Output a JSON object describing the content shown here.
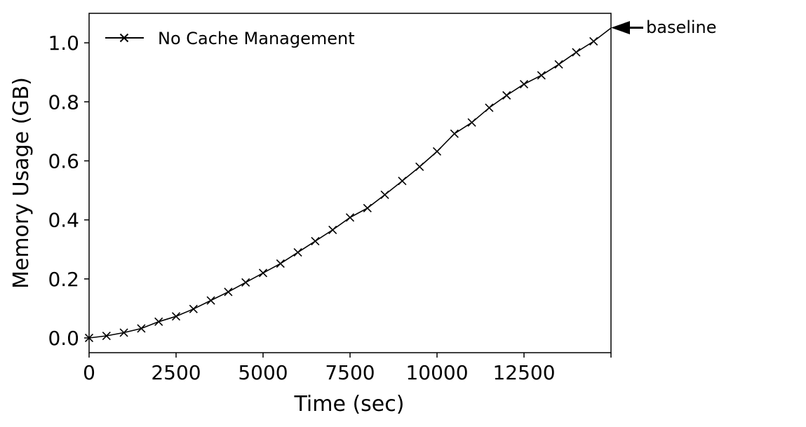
{
  "chart_data": {
    "type": "line",
    "title": "",
    "xlabel": "Time (sec)",
    "ylabel": "Memory Usage (GB)",
    "xlim": [
      0,
      15000
    ],
    "ylim": [
      -0.05,
      1.1
    ],
    "xticks": [
      0,
      2500,
      5000,
      7500,
      10000,
      12500
    ],
    "xtick_labels": [
      "0",
      "2500",
      "5000",
      "7500",
      "10000",
      "12500"
    ],
    "yticks": [
      0.0,
      0.2,
      0.4,
      0.6,
      0.8,
      1.0
    ],
    "ytick_labels": [
      "0.0",
      "0.2",
      "0.4",
      "0.6",
      "0.8",
      "1.0"
    ],
    "grid": false,
    "legend": {
      "placement": "top-left",
      "entries": [
        "No Cache Management"
      ]
    },
    "series": [
      {
        "name": "No Cache Management",
        "color": "#000000",
        "marker": "x",
        "x": [
          0,
          500,
          1000,
          1500,
          2000,
          2500,
          3000,
          3500,
          4000,
          4500,
          5000,
          5500,
          6000,
          6500,
          7000,
          7500,
          8000,
          8500,
          9000,
          9500,
          10000,
          10500,
          11000,
          11500,
          12000,
          12500,
          13000,
          13500,
          14000,
          14500,
          15000
        ],
        "y": [
          0.0,
          0.007,
          0.018,
          0.032,
          0.055,
          0.073,
          0.098,
          0.127,
          0.156,
          0.188,
          0.22,
          0.252,
          0.29,
          0.328,
          0.366,
          0.408,
          0.44,
          0.485,
          0.532,
          0.58,
          0.632,
          0.692,
          0.73,
          0.78,
          0.822,
          0.86,
          0.89,
          0.927,
          0.968,
          1.005,
          1.05
        ]
      }
    ],
    "annotations": [
      {
        "text": "baseline",
        "x": 15000,
        "y": 1.05,
        "arrow": true
      }
    ]
  }
}
